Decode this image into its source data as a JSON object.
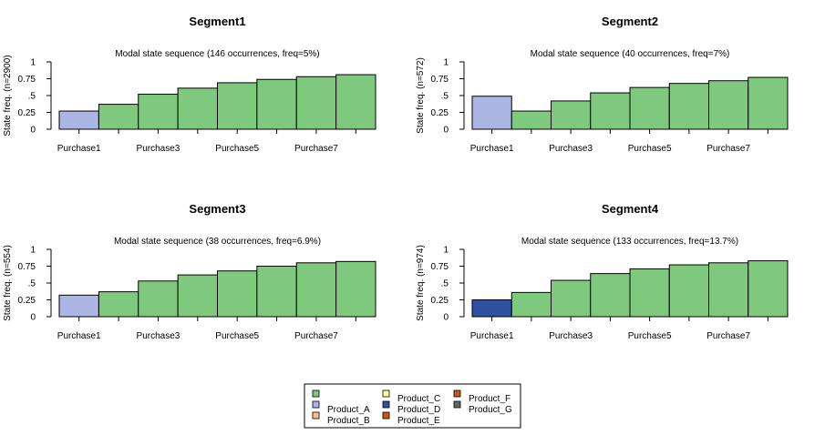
{
  "colors": {
    "purchase": "#7fc97f",
    "Product_A": "#abb6e4",
    "Product_B": "#fdc086",
    "Product_C": "#ffff99",
    "Product_D": "#3050a0",
    "Product_E": "#c65a1a",
    "Product_F": "#bf5b17",
    "Product_G": "#666666"
  },
  "legend": {
    "items": [
      "",
      "Product_A",
      "Product_B",
      "Product_C",
      "Product_D",
      "Product_E",
      "Product_F",
      "Product_G"
    ],
    "color_keys": [
      "purchase",
      "Product_A",
      "Product_B",
      "Product_C",
      "Product_D",
      "Product_E",
      "Product_F",
      "Product_G"
    ]
  },
  "chart_data": [
    {
      "type": "bar",
      "title": "Segment1",
      "subtitle": "Modal state sequence (146 occurrences, freq=5%)",
      "ylabel": "State freq. (n=2900)",
      "yticks": [
        "0",
        "0.25",
        ".5",
        "0.75",
        "1"
      ],
      "ylim": [
        0,
        1
      ],
      "xtick_labels": [
        "Purchase1",
        "Purchase3",
        "Purchase5",
        "Purchase7"
      ],
      "categories": [
        "Purchase1",
        "Purchase2",
        "Purchase3",
        "Purchase4",
        "Purchase5",
        "Purchase6",
        "Purchase7",
        "Purchase8"
      ],
      "values": [
        0.27,
        0.37,
        0.52,
        0.61,
        0.69,
        0.74,
        0.78,
        0.81
      ],
      "states": [
        "Product_A",
        "purchase",
        "purchase",
        "purchase",
        "purchase",
        "purchase",
        "purchase",
        "purchase"
      ]
    },
    {
      "type": "bar",
      "title": "Segment2",
      "subtitle": "Modal state sequence (40 occurrences, freq=7%)",
      "ylabel": "State freq. (n=572)",
      "yticks": [
        "0",
        "0.25",
        ".5",
        "0.75",
        "1"
      ],
      "ylim": [
        0,
        1
      ],
      "xtick_labels": [
        "Purchase1",
        "Purchase3",
        "Purchase5",
        "Purchase7"
      ],
      "categories": [
        "Purchase1",
        "Purchase2",
        "Purchase3",
        "Purchase4",
        "Purchase5",
        "Purchase6",
        "Purchase7",
        "Purchase8"
      ],
      "values": [
        0.49,
        0.27,
        0.42,
        0.54,
        0.62,
        0.68,
        0.72,
        0.77
      ],
      "states": [
        "Product_A",
        "purchase",
        "purchase",
        "purchase",
        "purchase",
        "purchase",
        "purchase",
        "purchase"
      ]
    },
    {
      "type": "bar",
      "title": "Segment3",
      "subtitle": "Modal state sequence (38 occurrences, freq=6.9%)",
      "ylabel": "State freq. (n=554)",
      "yticks": [
        "0",
        "0.25",
        ".5",
        "0.75",
        "1"
      ],
      "ylim": [
        0,
        1
      ],
      "xtick_labels": [
        "Purchase1",
        "Purchase3",
        "Purchase5",
        "Purchase7"
      ],
      "categories": [
        "Purchase1",
        "Purchase2",
        "Purchase3",
        "Purchase4",
        "Purchase5",
        "Purchase6",
        "Purchase7",
        "Purchase8"
      ],
      "values": [
        0.32,
        0.37,
        0.53,
        0.62,
        0.68,
        0.75,
        0.8,
        0.82
      ],
      "states": [
        "Product_A",
        "purchase",
        "purchase",
        "purchase",
        "purchase",
        "purchase",
        "purchase",
        "purchase"
      ]
    },
    {
      "type": "bar",
      "title": "Segment4",
      "subtitle": "Modal state sequence (133 occurrences, freq=13.7%)",
      "ylabel": "State freq. (n=974)",
      "yticks": [
        "0",
        "0.25",
        ".5",
        "0.75",
        "1"
      ],
      "ylim": [
        0,
        1
      ],
      "xtick_labels": [
        "Purchase1",
        "Purchase3",
        "Purchase5",
        "Purchase7"
      ],
      "categories": [
        "Purchase1",
        "Purchase2",
        "Purchase3",
        "Purchase4",
        "Purchase5",
        "Purchase6",
        "Purchase7",
        "Purchase8"
      ],
      "values": [
        0.25,
        0.36,
        0.54,
        0.64,
        0.71,
        0.77,
        0.8,
        0.83
      ],
      "states": [
        "Product_D",
        "purchase",
        "purchase",
        "purchase",
        "purchase",
        "purchase",
        "purchase",
        "purchase"
      ]
    }
  ]
}
